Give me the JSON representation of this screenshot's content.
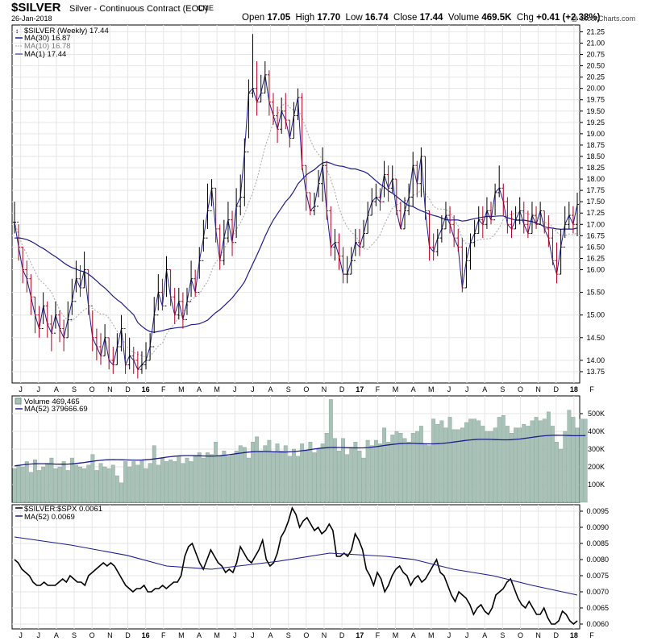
{
  "header": {
    "symbol": "$SILVER",
    "subtitle": "Silver - Continuous Contract (EOD)",
    "exchange": "CME",
    "date": "26-Jan-2018",
    "open_label": "Open",
    "open": "17.05",
    "high_label": "High",
    "high": "17.70",
    "low_label": "Low",
    "low": "16.74",
    "close_label": "Close",
    "close": "17.44",
    "volume_label": "Volume",
    "volume": "469.5K",
    "chg_label": "Chg",
    "chg": "+0.41 (+2.38%)",
    "copyright": "@ StockCharts.com"
  },
  "colors": {
    "up_bar": "#000000",
    "down_bar": "#b00020",
    "ma_long": "#1c1c8c",
    "ma_short": "#a8a8a8",
    "ma1": "#1c1c8c",
    "volume_fill": "#a9c2b8",
    "volume_stroke": "#6f8f84",
    "ratio_line": "#000000"
  },
  "chart_data": [
    {
      "type": "ohlc",
      "series_title": "$SILVER (Weekly) 17.44",
      "legend": [
        "MA(30) 16.87",
        "MA(10) 16.78",
        "MA(1) 17.44"
      ],
      "ylim": [
        13.5,
        21.4
      ],
      "yticks": [
        13.75,
        14.0,
        14.5,
        15.0,
        15.5,
        16.0,
        16.25,
        16.5,
        16.75,
        17.0,
        17.25,
        17.5,
        17.75,
        18.0,
        18.25,
        18.5,
        18.75,
        19.0,
        19.25,
        19.5,
        19.75,
        20.0,
        20.25,
        20.5,
        20.75,
        21.0,
        21.25
      ],
      "close": [
        17.05,
        16.5,
        16.0,
        15.8,
        15.4,
        15.0,
        14.7,
        15.2,
        14.8,
        14.6,
        15.0,
        14.7,
        14.5,
        14.9,
        15.3,
        15.8,
        15.6,
        16.0,
        15.2,
        14.5,
        14.3,
        14.1,
        14.5,
        14.0,
        13.9,
        14.3,
        14.7,
        13.9,
        14.1,
        14.0,
        13.8,
        13.9,
        14.0,
        14.3,
        15.0,
        15.5,
        15.2,
        16.0,
        15.4,
        15.0,
        15.3,
        14.9,
        15.3,
        15.8,
        15.5,
        16.2,
        16.7,
        17.3,
        17.8,
        16.9,
        16.2,
        16.7,
        17.1,
        16.6,
        17.4,
        17.6,
        18.6,
        19.9,
        20.0,
        19.7,
        19.9,
        20.3,
        19.7,
        19.4,
        19.1,
        19.5,
        19.3,
        18.9,
        19.4,
        19.8,
        18.3,
        17.7,
        17.3,
        17.4,
        17.9,
        18.3,
        17.3,
        16.5,
        16.6,
        16.3,
        15.9,
        15.9,
        16.2,
        16.6,
        16.5,
        16.8,
        17.2,
        17.5,
        17.6,
        17.5,
        18.1,
        17.8,
        18.0,
        17.3,
        16.9,
        17.3,
        17.6,
        18.3,
        17.9,
        18.5,
        17.3,
        16.5,
        16.4,
        16.7,
        16.9,
        17.2,
        17.0,
        16.7,
        16.5,
        15.6,
        16.2,
        16.6,
        16.8,
        17.1,
        17.0,
        17.3,
        17.1,
        17.7,
        17.8,
        17.5,
        17.0,
        16.9,
        17.1,
        17.3,
        17.0,
        16.8,
        17.2,
        17.0,
        17.3,
        16.9,
        16.7,
        16.2,
        15.9,
        16.5,
        17.0,
        17.2,
        17.0,
        17.44
      ],
      "high": [
        17.5,
        17.0,
        16.5,
        16.2,
        15.9,
        15.4,
        15.2,
        15.5,
        15.3,
        15.0,
        15.3,
        15.1,
        14.9,
        15.3,
        15.8,
        16.2,
        16.1,
        16.4,
        16.0,
        15.1,
        14.7,
        14.6,
        14.8,
        14.5,
        14.3,
        14.6,
        15.0,
        14.6,
        14.5,
        14.3,
        14.2,
        14.2,
        14.4,
        14.6,
        15.4,
        15.9,
        15.8,
        16.3,
        16.0,
        15.6,
        15.6,
        15.5,
        15.6,
        16.2,
        16.0,
        16.5,
        17.1,
        17.9,
        18.0,
        17.8,
        17.0,
        17.1,
        17.5,
        17.3,
        17.8,
        18.1,
        18.9,
        20.2,
        21.2,
        20.6,
        20.3,
        20.6,
        20.4,
        19.9,
        19.6,
        19.8,
        19.9,
        19.3,
        19.7,
        20.0,
        19.9,
        18.3,
        17.7,
        17.7,
        18.2,
        18.7,
        18.4,
        17.4,
        16.9,
        16.8,
        16.5,
        16.3,
        16.5,
        16.9,
        16.9,
        17.1,
        17.5,
        17.8,
        17.9,
        17.8,
        18.4,
        18.3,
        18.3,
        18.0,
        17.5,
        17.6,
        17.9,
        18.6,
        18.4,
        18.7,
        18.5,
        17.3,
        16.8,
        16.9,
        17.2,
        17.5,
        17.4,
        17.2,
        16.9,
        16.7,
        16.5,
        16.8,
        17.1,
        17.4,
        17.4,
        17.6,
        17.5,
        17.9,
        18.3,
        17.9,
        17.6,
        17.3,
        17.4,
        17.6,
        17.5,
        17.3,
        17.5,
        17.4,
        17.5,
        17.3,
        17.2,
        16.9,
        16.6,
        16.9,
        17.4,
        17.5,
        17.4,
        17.7
      ],
      "low": [
        16.8,
        16.2,
        15.7,
        15.5,
        15.0,
        14.6,
        14.5,
        14.8,
        14.5,
        14.2,
        14.7,
        14.4,
        14.2,
        14.5,
        15.0,
        15.5,
        15.4,
        15.6,
        15.0,
        14.2,
        14.0,
        13.9,
        14.1,
        13.8,
        13.7,
        13.9,
        14.2,
        13.7,
        13.8,
        13.7,
        13.6,
        13.7,
        13.8,
        14.0,
        14.6,
        15.1,
        15.1,
        15.4,
        15.2,
        14.8,
        14.9,
        14.7,
        15.0,
        15.4,
        15.4,
        15.8,
        16.4,
        16.9,
        17.4,
        16.6,
        16.0,
        16.1,
        16.6,
        16.3,
        16.7,
        17.2,
        17.4,
        18.9,
        19.8,
        19.4,
        19.7,
        19.9,
        19.4,
        19.2,
        18.8,
        19.0,
        19.1,
        18.7,
        18.9,
        19.3,
        18.2,
        17.3,
        17.2,
        17.2,
        17.6,
        17.5,
        17.1,
        16.3,
        16.2,
        16.0,
        15.7,
        15.7,
        15.9,
        16.3,
        16.3,
        16.5,
        16.8,
        17.2,
        17.4,
        17.3,
        17.6,
        17.5,
        17.7,
        17.2,
        16.9,
        16.9,
        17.2,
        17.4,
        17.6,
        17.6,
        17.1,
        16.2,
        16.2,
        16.3,
        16.6,
        16.9,
        16.8,
        16.5,
        16.4,
        15.5,
        15.6,
        16.0,
        16.5,
        16.8,
        16.7,
        16.9,
        17.0,
        17.2,
        17.6,
        17.2,
        16.8,
        16.7,
        16.9,
        17.0,
        16.8,
        16.7,
        16.8,
        16.9,
        17.0,
        16.8,
        16.5,
        16.1,
        15.7,
        15.9,
        16.7,
        16.9,
        16.8,
        16.74
      ],
      "ma30_end": 16.87,
      "ma10_end": 16.78
    },
    {
      "type": "bar",
      "series_title": "Volume 469,465",
      "legend": [
        "MA(52) 379666.69"
      ],
      "ylim": [
        0,
        600000
      ],
      "yticks": [
        100000,
        200000,
        300000,
        400000,
        500000
      ],
      "ytick_labels": [
        "100K",
        "200K",
        "300K",
        "400K",
        "500K"
      ],
      "values": [
        190000,
        210000,
        200000,
        230000,
        170000,
        240000,
        180000,
        200000,
        220000,
        250000,
        190000,
        200000,
        230000,
        180000,
        250000,
        210000,
        200000,
        190000,
        210000,
        270000,
        180000,
        220000,
        200000,
        190000,
        210000,
        150000,
        110000,
        230000,
        200000,
        230000,
        210000,
        240000,
        190000,
        220000,
        320000,
        210000,
        250000,
        230000,
        240000,
        230000,
        260000,
        220000,
        250000,
        230000,
        260000,
        280000,
        250000,
        280000,
        270000,
        340000,
        260000,
        290000,
        260000,
        270000,
        290000,
        320000,
        310000,
        250000,
        340000,
        370000,
        290000,
        320000,
        350000,
        280000,
        330000,
        290000,
        320000,
        260000,
        300000,
        260000,
        330000,
        290000,
        340000,
        280000,
        300000,
        330000,
        390000,
        580000,
        360000,
        290000,
        360000,
        270000,
        310000,
        340000,
        290000,
        250000,
        350000,
        320000,
        350000,
        330000,
        420000,
        340000,
        380000,
        400000,
        390000,
        360000,
        340000,
        390000,
        400000,
        430000,
        330000,
        320000,
        470000,
        440000,
        460000,
        420000,
        480000,
        410000,
        410000,
        420000,
        450000,
        470000,
        470000,
        460000,
        430000,
        400000,
        400000,
        420000,
        480000,
        490000,
        430000,
        390000,
        420000,
        420000,
        440000,
        430000,
        460000,
        480000,
        460000,
        470000,
        510000,
        430000,
        340000,
        300000,
        400000,
        520000,
        480000,
        420000,
        470000,
        469465
      ],
      "ma52_start": 205000,
      "ma52_end": 379666.69
    },
    {
      "type": "line",
      "series_title": "$SILVER:$SPX 0.0061",
      "legend": [
        "MA(52) 0.0069"
      ],
      "ylim": [
        0.00585,
        0.0097
      ],
      "yticks": [
        0.006,
        0.0065,
        0.007,
        0.0075,
        0.008,
        0.0085,
        0.009,
        0.0095
      ],
      "ytick_labels": [
        "0.0060",
        "0.0065",
        "0.0070",
        "0.0075",
        "0.0080",
        "0.0085",
        "0.0090",
        "0.0095"
      ],
      "ratio": [
        0.008,
        0.0079,
        0.0077,
        0.0076,
        0.0075,
        0.0073,
        0.0072,
        0.0072,
        0.0073,
        0.0072,
        0.0072,
        0.0072,
        0.0073,
        0.0074,
        0.0073,
        0.0075,
        0.0074,
        0.0073,
        0.0073,
        0.0072,
        0.0075,
        0.0076,
        0.0077,
        0.0078,
        0.0079,
        0.0078,
        0.0079,
        0.0078,
        0.0076,
        0.0074,
        0.0072,
        0.0071,
        0.007,
        0.0071,
        0.0071,
        0.0072,
        0.007,
        0.007,
        0.0071,
        0.0071,
        0.0072,
        0.0071,
        0.0072,
        0.0073,
        0.0073,
        0.0075,
        0.0081,
        0.0084,
        0.0085,
        0.0082,
        0.0079,
        0.0077,
        0.008,
        0.0083,
        0.0081,
        0.0079,
        0.0078,
        0.0076,
        0.0077,
        0.0076,
        0.0079,
        0.0084,
        0.0082,
        0.008,
        0.0079,
        0.0081,
        0.0083,
        0.0086,
        0.008,
        0.0078,
        0.0079,
        0.0082,
        0.0087,
        0.0089,
        0.0092,
        0.0096,
        0.0094,
        0.009,
        0.0092,
        0.0093,
        0.0091,
        0.0089,
        0.009,
        0.0088,
        0.0089,
        0.0091,
        0.0089,
        0.0081,
        0.0081,
        0.0082,
        0.0081,
        0.0083,
        0.0088,
        0.0086,
        0.0083,
        0.0077,
        0.0075,
        0.0072,
        0.0076,
        0.0074,
        0.007,
        0.0072,
        0.0075,
        0.0077,
        0.0078,
        0.0076,
        0.0075,
        0.0072,
        0.0074,
        0.0075,
        0.0073,
        0.0074,
        0.0076,
        0.0078,
        0.008,
        0.0076,
        0.0075,
        0.0072,
        0.0069,
        0.0067,
        0.007,
        0.0069,
        0.0068,
        0.0066,
        0.0063,
        0.0065,
        0.0066,
        0.0064,
        0.0063,
        0.0065,
        0.0069,
        0.007,
        0.0071,
        0.0073,
        0.0074,
        0.0071,
        0.0068,
        0.0066,
        0.0065,
        0.0067,
        0.0065,
        0.0063,
        0.0063,
        0.0065,
        0.0062,
        0.006,
        0.006,
        0.0061,
        0.0064,
        0.0063,
        0.0061,
        0.006,
        0.0061
      ],
      "ma52_points": [
        [
          0,
          0.0087
        ],
        [
          0.1,
          0.00845
        ],
        [
          0.2,
          0.00813
        ],
        [
          0.27,
          0.0078
        ],
        [
          0.35,
          0.0077
        ],
        [
          0.47,
          0.00795
        ],
        [
          0.56,
          0.0082
        ],
        [
          0.66,
          0.0081
        ],
        [
          0.71,
          0.008
        ],
        [
          0.78,
          0.0077
        ],
        [
          0.85,
          0.0075
        ],
        [
          0.92,
          0.0072
        ],
        [
          1.0,
          0.0069
        ]
      ]
    }
  ],
  "x_axis": {
    "labels": [
      "J",
      "J",
      "A",
      "S",
      "O",
      "N",
      "D",
      "16",
      "F",
      "M",
      "A",
      "M",
      "J",
      "J",
      "A",
      "S",
      "O",
      "N",
      "D",
      "17",
      "F",
      "M",
      "A",
      "M",
      "J",
      "J",
      "A",
      "S",
      "O",
      "N",
      "D",
      "18",
      "F"
    ],
    "bold_labels": [
      "16",
      "17",
      "18"
    ]
  }
}
